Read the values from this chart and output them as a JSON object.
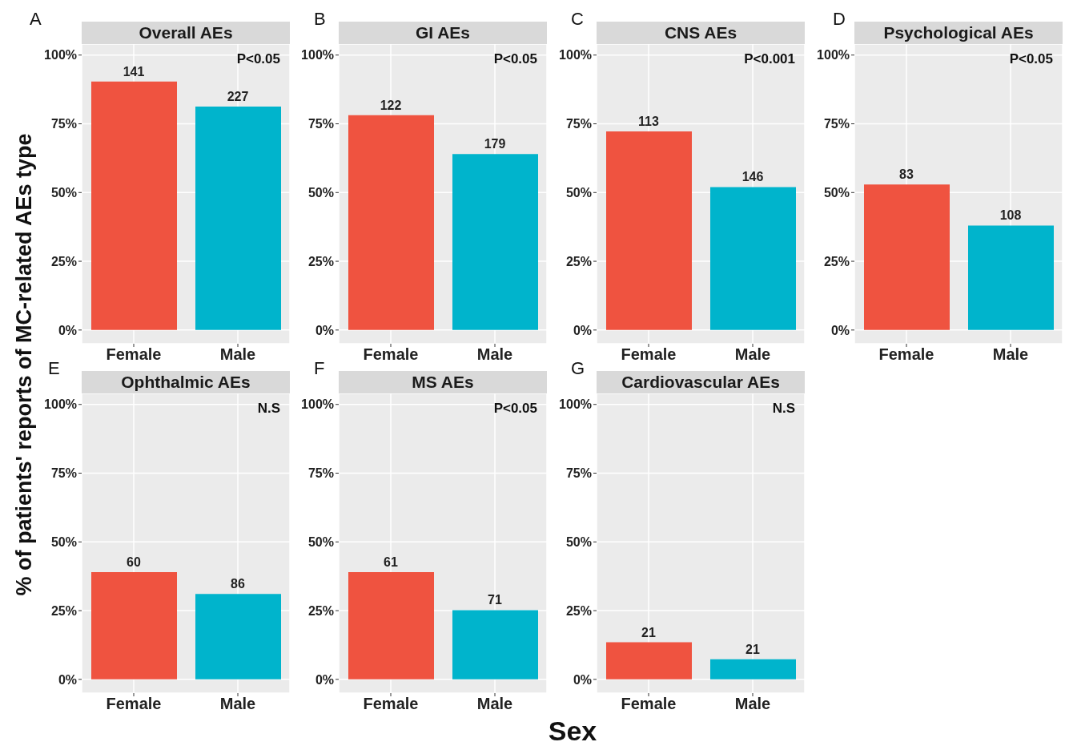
{
  "chart_data": [
    {
      "type": "bar",
      "title": "Overall AEs",
      "ylabel": "% of patients' reports of MC-related AEs type",
      "categories": [
        "Female",
        "Male"
      ],
      "values": [
        90.4,
        81.3
      ],
      "colors": [
        "#ef5340",
        "#00b4cc"
      ],
      "annotations": [
        "A",
        "P<0.05",
        {
          "text": "141",
          "x": "Female",
          "y": 90.4
        },
        {
          "text": "227",
          "x": "Male",
          "y": 81.3
        }
      ],
      "ylim": [
        -5,
        104
      ],
      "yticks": [
        {
          "value": 0,
          "label": "0%"
        },
        {
          "value": 25,
          "label": "25%"
        },
        {
          "value": 50,
          "label": "50%"
        },
        {
          "value": 75,
          "label": "75%"
        },
        {
          "value": 100,
          "label": "100%"
        }
      ],
      "grid": true
    },
    {
      "type": "bar",
      "title": "GI AEs",
      "categories": [
        "Female",
        "Male"
      ],
      "values": [
        78.1,
        64.0
      ],
      "colors": [
        "#ef5340",
        "#00b4cc"
      ],
      "annotations": [
        "B",
        "P<0.05",
        {
          "text": "122",
          "x": "Female",
          "y": 78.1
        },
        {
          "text": "179",
          "x": "Male",
          "y": 64.0
        }
      ],
      "ylim": [
        -5,
        104
      ],
      "yticks": [
        {
          "value": 0,
          "label": "0%"
        },
        {
          "value": 25,
          "label": "25%"
        },
        {
          "value": 50,
          "label": "50%"
        },
        {
          "value": 75,
          "label": "75%"
        },
        {
          "value": 100,
          "label": "100%"
        }
      ],
      "grid": true
    },
    {
      "type": "bar",
      "title": "CNS AEs",
      "categories": [
        "Female",
        "Male"
      ],
      "values": [
        72.2,
        52.0
      ],
      "colors": [
        "#ef5340",
        "#00b4cc"
      ],
      "annotations": [
        "C",
        "P<0.001",
        {
          "text": "113",
          "x": "Female",
          "y": 72.2
        },
        {
          "text": "146",
          "x": "Male",
          "y": 52.0
        }
      ],
      "ylim": [
        -5,
        104
      ],
      "yticks": [
        {
          "value": 0,
          "label": "0%"
        },
        {
          "value": 25,
          "label": "25%"
        },
        {
          "value": 50,
          "label": "50%"
        },
        {
          "value": 75,
          "label": "75%"
        },
        {
          "value": 100,
          "label": "100%"
        }
      ],
      "grid": true
    },
    {
      "type": "bar",
      "title": "Psychological AEs",
      "categories": [
        "Female",
        "Male"
      ],
      "values": [
        52.9,
        38.0
      ],
      "colors": [
        "#ef5340",
        "#00b4cc"
      ],
      "annotations": [
        "D",
        "P<0.05",
        {
          "text": "83",
          "x": "Female",
          "y": 52.9
        },
        {
          "text": "108",
          "x": "Male",
          "y": 38.0
        }
      ],
      "ylim": [
        -5,
        104
      ],
      "yticks": [
        {
          "value": 0,
          "label": "0%"
        },
        {
          "value": 25,
          "label": "25%"
        },
        {
          "value": 50,
          "label": "50%"
        },
        {
          "value": 75,
          "label": "75%"
        },
        {
          "value": 100,
          "label": "100%"
        }
      ],
      "grid": true
    },
    {
      "type": "bar",
      "title": "Ophthalmic AEs",
      "categories": [
        "Female",
        "Male"
      ],
      "values": [
        39.0,
        31.1
      ],
      "colors": [
        "#ef5340",
        "#00b4cc"
      ],
      "annotations": [
        "E",
        "N.S",
        {
          "text": "60",
          "x": "Female",
          "y": 39.0
        },
        {
          "text": "86",
          "x": "Male",
          "y": 31.1
        }
      ],
      "ylim": [
        -5,
        104
      ],
      "yticks": [
        {
          "value": 0,
          "label": "0%"
        },
        {
          "value": 25,
          "label": "25%"
        },
        {
          "value": 50,
          "label": "50%"
        },
        {
          "value": 75,
          "label": "75%"
        },
        {
          "value": 100,
          "label": "100%"
        }
      ],
      "grid": true
    },
    {
      "type": "bar",
      "title": "MS AEs",
      "xlabel": "Sex",
      "categories": [
        "Female",
        "Male"
      ],
      "values": [
        39.0,
        25.2
      ],
      "colors": [
        "#ef5340",
        "#00b4cc"
      ],
      "annotations": [
        "F",
        "P<0.05",
        {
          "text": "61",
          "x": "Female",
          "y": 39.0
        },
        {
          "text": "71",
          "x": "Male",
          "y": 25.2
        }
      ],
      "ylim": [
        -5,
        104
      ],
      "yticks": [
        {
          "value": 0,
          "label": "0%"
        },
        {
          "value": 25,
          "label": "25%"
        },
        {
          "value": 50,
          "label": "50%"
        },
        {
          "value": 75,
          "label": "75%"
        },
        {
          "value": 100,
          "label": "100%"
        }
      ],
      "grid": true
    },
    {
      "type": "bar",
      "title": "Cardiovascular AEs",
      "categories": [
        "Female",
        "Male"
      ],
      "values": [
        13.5,
        7.3
      ],
      "colors": [
        "#ef5340",
        "#00b4cc"
      ],
      "annotations": [
        "G",
        "N.S",
        {
          "text": "21",
          "x": "Female",
          "y": 13.5
        },
        {
          "text": "21",
          "x": "Male",
          "y": 7.3
        }
      ],
      "ylim": [
        -5,
        104
      ],
      "yticks": [
        {
          "value": 0,
          "label": "0%"
        },
        {
          "value": 25,
          "label": "25%"
        },
        {
          "value": 50,
          "label": "50%"
        },
        {
          "value": 75,
          "label": "75%"
        },
        {
          "value": 100,
          "label": "100%"
        }
      ],
      "grid": true
    }
  ]
}
